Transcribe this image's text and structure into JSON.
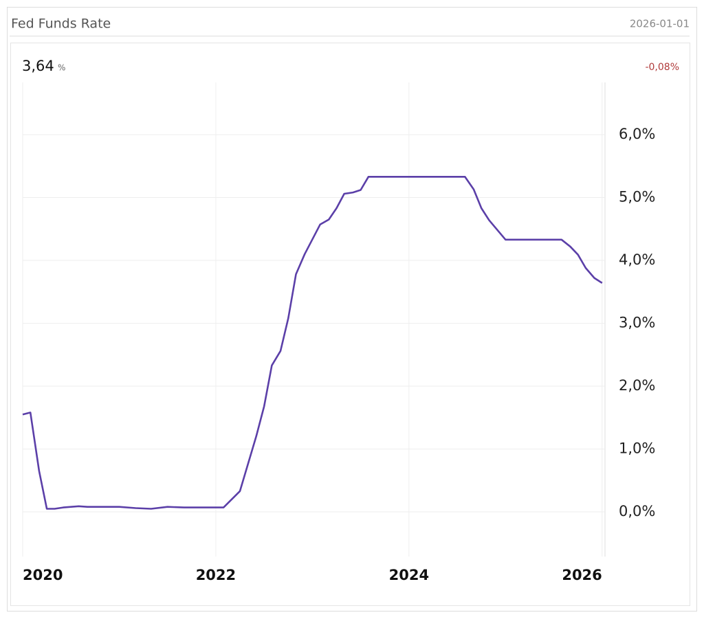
{
  "chart_data": {
    "type": "line",
    "title": "Fed Funds Rate",
    "date": "2026-01-01",
    "current_value": "3,64",
    "current_unit": "%",
    "change": "-0,08%",
    "color": "#5b3fa8",
    "x": [
      2020.0,
      2020.08,
      2020.17,
      2020.25,
      2020.33,
      2020.42,
      2020.58,
      2020.67,
      2021.0,
      2021.17,
      2021.33,
      2021.5,
      2021.67,
      2022.08,
      2022.25,
      2022.42,
      2022.5,
      2022.58,
      2022.67,
      2022.75,
      2022.83,
      2022.92,
      2023.08,
      2023.17,
      2023.25,
      2023.33,
      2023.42,
      2023.5,
      2023.58,
      2024.58,
      2024.67,
      2024.75,
      2024.83,
      2025.0,
      2025.58,
      2025.67,
      2025.75,
      2025.83,
      2025.92,
      2026.0
    ],
    "values": [
      1.55,
      1.58,
      0.65,
      0.05,
      0.05,
      0.07,
      0.09,
      0.08,
      0.08,
      0.06,
      0.05,
      0.08,
      0.07,
      0.07,
      0.33,
      1.21,
      1.68,
      2.33,
      2.56,
      3.08,
      3.78,
      4.1,
      4.57,
      4.65,
      4.83,
      5.06,
      5.08,
      5.12,
      5.33,
      5.33,
      5.13,
      4.83,
      4.64,
      4.33,
      4.33,
      4.22,
      4.09,
      3.88,
      3.72,
      3.64
    ],
    "xlim": [
      2020,
      2026.03
    ],
    "xticks": [
      2020,
      2022,
      2024,
      2026
    ],
    "ylim": [
      -0.71,
      6.83
    ],
    "yticks": [
      {
        "value": 0,
        "label": "0,0%"
      },
      {
        "value": 1,
        "label": "1,0%"
      },
      {
        "value": 2,
        "label": "2,0%"
      },
      {
        "value": 3,
        "label": "3,0%"
      },
      {
        "value": 4,
        "label": "4,0%"
      },
      {
        "value": 5,
        "label": "5,0%"
      },
      {
        "value": 6,
        "label": "6,0%"
      }
    ],
    "grid": true
  }
}
